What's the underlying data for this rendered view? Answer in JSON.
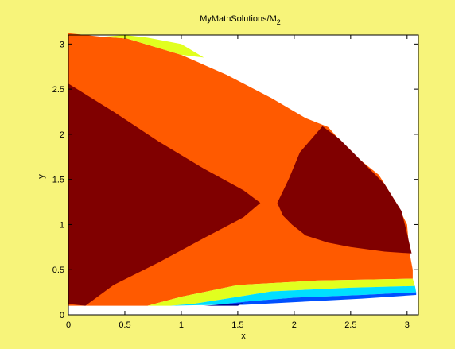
{
  "chart_data": {
    "type": "contour",
    "title": {
      "main": "MyMathSolutions/M",
      "subscript": "2"
    },
    "xlabel": "x",
    "ylabel": "y",
    "xlim": [
      0,
      3.1
    ],
    "ylim": [
      0,
      3.1
    ],
    "xticks": [
      "0",
      "0.5",
      "1",
      "1.5",
      "2",
      "2.5",
      "3"
    ],
    "yticks": [
      "0",
      "0.5",
      "1",
      "1.5",
      "2",
      "2.5",
      "3"
    ],
    "grid": false,
    "colors": {
      "figure_background": "#f7f47a",
      "axes_background": "#ffffff",
      "levels": [
        "#00008f",
        "#0050ff",
        "#00dfff",
        "#7fff7f",
        "#e1ff1f",
        "#ff5a00",
        "#800000"
      ]
    },
    "regions": [
      {
        "level": 5,
        "points": [
          [
            0,
            3.12
          ],
          [
            0.3,
            3.08
          ],
          [
            0.52,
            3.06
          ],
          [
            1.0,
            2.88
          ],
          [
            1.4,
            2.66
          ],
          [
            1.8,
            2.4
          ],
          [
            2.1,
            2.18
          ],
          [
            2.3,
            2.08
          ],
          [
            2.5,
            1.8
          ],
          [
            2.75,
            1.55
          ],
          [
            2.9,
            1.25
          ],
          [
            3.0,
            1.0
          ],
          [
            3.02,
            0.7
          ],
          [
            3.05,
            0.5
          ],
          [
            3.05,
            0.4
          ],
          [
            2.2,
            0.38
          ],
          [
            1.5,
            0.33
          ],
          [
            1.0,
            0.2
          ],
          [
            0.7,
            0.1
          ],
          [
            0,
            0.1
          ]
        ]
      },
      {
        "level": 4,
        "points": [
          [
            0.3,
            3.08
          ],
          [
            0.52,
            3.06
          ],
          [
            1.0,
            2.88
          ],
          [
            1.2,
            2.85
          ],
          [
            1.0,
            3.0
          ],
          [
            0.7,
            3.07
          ],
          [
            0.5,
            3.1
          ]
        ]
      },
      {
        "level": 4,
        "points": [
          [
            0.7,
            0.1
          ],
          [
            1.0,
            0.2
          ],
          [
            1.5,
            0.33
          ],
          [
            2.2,
            0.38
          ],
          [
            3.05,
            0.4
          ],
          [
            3.07,
            0.32
          ],
          [
            2.5,
            0.3
          ],
          [
            1.8,
            0.26
          ],
          [
            1.4,
            0.18
          ],
          [
            1.1,
            0.12
          ],
          [
            0.9,
            0.1
          ]
        ]
      },
      {
        "level": 2,
        "points": [
          [
            0.9,
            0.1
          ],
          [
            1.1,
            0.12
          ],
          [
            1.4,
            0.18
          ],
          [
            1.8,
            0.26
          ],
          [
            2.5,
            0.3
          ],
          [
            3.07,
            0.32
          ],
          [
            3.08,
            0.25
          ],
          [
            2.6,
            0.22
          ],
          [
            2.0,
            0.19
          ],
          [
            1.6,
            0.15
          ],
          [
            1.3,
            0.11
          ]
        ]
      },
      {
        "level": 1,
        "points": [
          [
            1.3,
            0.11
          ],
          [
            1.6,
            0.15
          ],
          [
            2.0,
            0.19
          ],
          [
            2.6,
            0.22
          ],
          [
            3.08,
            0.25
          ],
          [
            3.08,
            0.22
          ],
          [
            2.6,
            0.18
          ],
          [
            2.0,
            0.14
          ],
          [
            1.55,
            0.11
          ]
        ]
      },
      {
        "level": 0,
        "points": [
          [
            1.2,
            0.1
          ],
          [
            1.55,
            0.13
          ],
          [
            1.5,
            0.1
          ]
        ]
      },
      {
        "level": 6,
        "points": [
          [
            0,
            2.56
          ],
          [
            0.4,
            2.25
          ],
          [
            0.8,
            1.92
          ],
          [
            1.2,
            1.62
          ],
          [
            1.55,
            1.38
          ],
          [
            1.7,
            1.24
          ],
          [
            1.55,
            1.08
          ],
          [
            1.2,
            0.85
          ],
          [
            0.8,
            0.58
          ],
          [
            0.4,
            0.33
          ],
          [
            0.15,
            0.1
          ],
          [
            0,
            0.12
          ]
        ]
      },
      {
        "level": 6,
        "points": [
          [
            1.85,
            1.24
          ],
          [
            1.95,
            1.5
          ],
          [
            2.05,
            1.8
          ],
          [
            2.25,
            2.09
          ],
          [
            2.4,
            1.95
          ],
          [
            2.6,
            1.7
          ],
          [
            2.8,
            1.45
          ],
          [
            2.95,
            1.15
          ],
          [
            3.0,
            0.9
          ],
          [
            3.04,
            0.68
          ],
          [
            2.8,
            0.7
          ],
          [
            2.5,
            0.75
          ],
          [
            2.3,
            0.8
          ],
          [
            2.1,
            0.88
          ],
          [
            1.98,
            1.0
          ],
          [
            1.9,
            1.1
          ]
        ]
      }
    ]
  }
}
